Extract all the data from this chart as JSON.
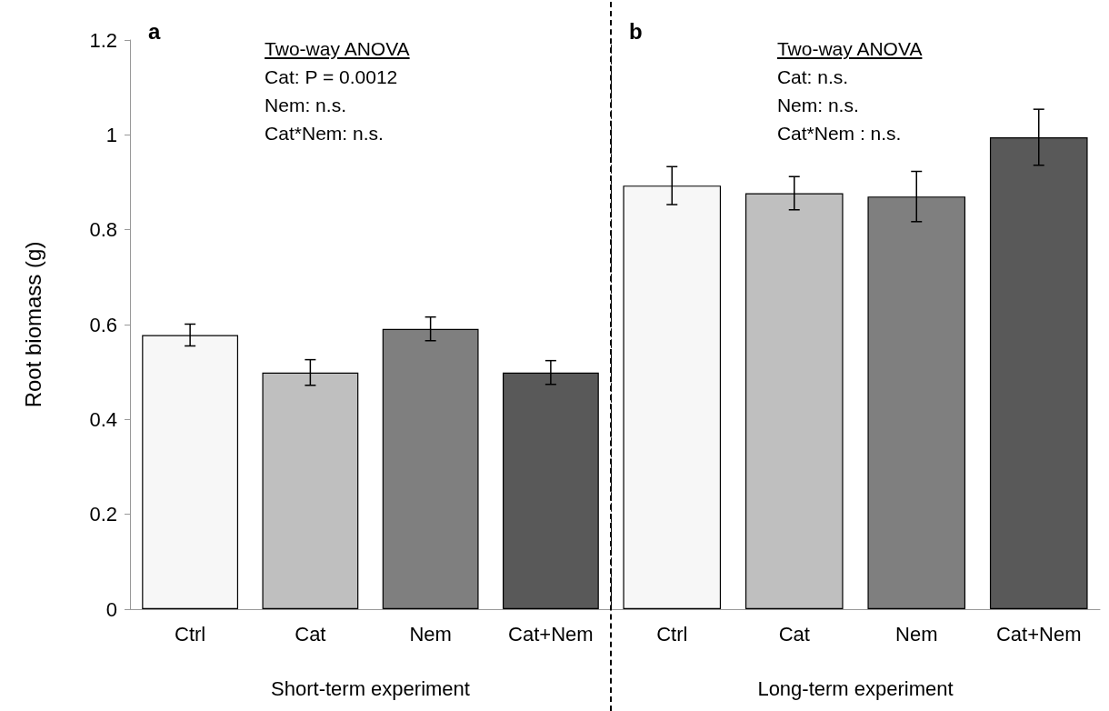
{
  "chart_data": [
    {
      "type": "bar",
      "title": "a",
      "xlabel": "Short-term experiment",
      "ylabel": "Root biomass (g)",
      "categories": [
        "Ctrl",
        "Cat",
        "Nem",
        "Cat+Nem"
      ],
      "values": [
        0.578,
        0.499,
        0.591,
        0.499
      ],
      "errors": [
        0.023,
        0.027,
        0.025,
        0.025
      ],
      "colors": [
        "#f7f7f7",
        "#bfbfbf",
        "#7f7f7f",
        "#595959"
      ],
      "ylim": [
        0,
        1.2
      ],
      "yticks": [
        0,
        0.2,
        0.4,
        0.6,
        0.8,
        1,
        1.2
      ],
      "annotations": [
        "Two-way ANOVA",
        "Cat: P = 0.0012",
        "Nem: n.s.",
        "Cat*Nem: n.s."
      ],
      "grid": false
    },
    {
      "type": "bar",
      "title": "b",
      "xlabel": "Long-term experiment",
      "categories": [
        "Ctrl",
        "Cat",
        "Nem",
        "Cat+Nem"
      ],
      "values": [
        0.893,
        0.877,
        0.87,
        0.995
      ],
      "errors": [
        0.04,
        0.035,
        0.053,
        0.059
      ],
      "colors": [
        "#f7f7f7",
        "#bfbfbf",
        "#7f7f7f",
        "#595959"
      ],
      "ylim": [
        0,
        1.2
      ],
      "yticks": [
        0,
        0.2,
        0.4,
        0.6,
        0.8,
        1,
        1.2
      ],
      "annotations": [
        "Two-way ANOVA",
        "Cat: n.s.",
        "Nem: n.s.",
        "Cat*Nem : n.s."
      ],
      "tick_labels": "x",
      "grid": false
    }
  ]
}
